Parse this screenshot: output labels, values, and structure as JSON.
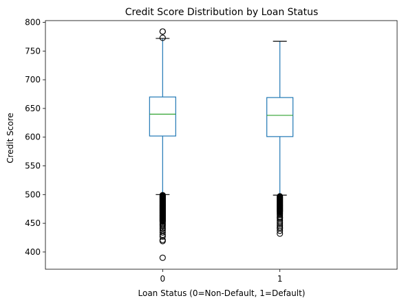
{
  "chart_data": {
    "type": "box",
    "title": "Credit Score Distribution by Loan Status",
    "xlabel": "Loan Status (0=Non-Default, 1=Default)",
    "ylabel": "Credit Score",
    "categories": [
      "0",
      "1"
    ],
    "ylim": [
      370,
      803
    ],
    "yticks": [
      400,
      450,
      500,
      550,
      600,
      650,
      700,
      750,
      800
    ],
    "grid": false,
    "colors": {
      "box": "#1f77b4",
      "median": "#2ca02c",
      "whisker": "#000000",
      "flier": "#000000"
    },
    "boxes": [
      {
        "category": "0",
        "whisker_low": 500,
        "q1": 602,
        "median": 640,
        "q3": 670,
        "whisker_high": 772,
        "fliers": [
          784,
          784,
          773,
          499,
          498,
          497,
          496,
          495,
          494,
          493,
          492,
          491,
          490,
          489,
          488,
          487,
          486,
          485,
          484,
          483,
          482,
          481,
          480,
          479,
          478,
          477,
          476,
          475,
          474,
          473,
          472,
          471,
          470,
          469,
          468,
          467,
          466,
          465,
          464,
          463,
          462,
          461,
          460,
          459,
          458,
          457,
          456,
          455,
          454,
          453,
          451,
          449,
          447,
          445,
          442,
          440,
          437,
          434,
          430,
          427,
          421,
          419,
          390
        ]
      },
      {
        "category": "1",
        "whisker_low": 499,
        "q1": 601,
        "median": 638,
        "q3": 669,
        "whisker_high": 767,
        "fliers": [
          497,
          496,
          495,
          494,
          493,
          492,
          491,
          490,
          489,
          488,
          487,
          486,
          485,
          484,
          483,
          482,
          481,
          480,
          479,
          478,
          477,
          476,
          475,
          474,
          473,
          472,
          471,
          470,
          468,
          466,
          464,
          461,
          460,
          458,
          455,
          452,
          449,
          446,
          443,
          441,
          437,
          432
        ]
      }
    ]
  }
}
